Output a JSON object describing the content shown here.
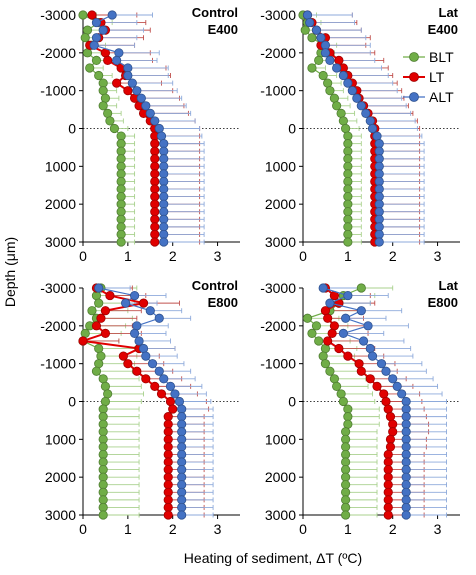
{
  "figure": {
    "ylabel": "Depth (μm)",
    "xlabel": "Heating of sediment, ΔT (ºC)"
  },
  "colors": {
    "BLT": "#70ad47",
    "BLT_edge": "#507e32",
    "LT": "#e00000",
    "LT_edge": "#a00000",
    "ALT": "#4472c4",
    "ALT_edge": "#2f528f",
    "err_green": "#a9d18e",
    "err_red": "#c0504d",
    "err_blue": "#8eaadb"
  },
  "legend": {
    "entries": [
      "BLT",
      "LT",
      "ALT"
    ]
  },
  "chart_data": [
    {
      "type": "line",
      "title_line1": "Control",
      "title_line2": "E400",
      "xlim": [
        0,
        3.5
      ],
      "ylim": [
        3000,
        -3000
      ],
      "xticks": [
        "0",
        "1",
        "2",
        "3"
      ],
      "yticks": [
        "-3000",
        "-2000",
        "-1000",
        "0",
        "1000",
        "2000",
        "3000"
      ],
      "depth": [
        -3000,
        -2800,
        -2600,
        -2400,
        -2200,
        -2000,
        -1800,
        -1600,
        -1400,
        -1200,
        -1000,
        -800,
        -600,
        -400,
        -200,
        0,
        200,
        400,
        600,
        800,
        1000,
        1200,
        1400,
        1600,
        1800,
        2000,
        2200,
        2400,
        2600,
        2800,
        3000
      ],
      "series": [
        {
          "name": "BLT",
          "values": [
            0.0,
            0.35,
            0.1,
            0.05,
            0.2,
            0.1,
            0.3,
            0.15,
            0.35,
            0.45,
            0.45,
            0.5,
            0.45,
            0.55,
            0.6,
            0.7,
            0.85,
            0.85,
            0.85,
            0.85,
            0.85,
            0.85,
            0.85,
            0.85,
            0.85,
            0.85,
            0.85,
            0.85,
            0.85,
            0.85,
            0.85
          ],
          "err": [
            0.3,
            0.3,
            0.3,
            0.3,
            0.3,
            0.3,
            0.3,
            0.3,
            0.3,
            0.3,
            0.3,
            0.3,
            0.3,
            0.3,
            0.3,
            0.3,
            0.3,
            0.3,
            0.3,
            0.3,
            0.3,
            0.3,
            0.3,
            0.3,
            0.3,
            0.3,
            0.3,
            0.3,
            0.3,
            0.3,
            0.3
          ]
        },
        {
          "name": "LT",
          "values": [
            0.2,
            0.4,
            0.5,
            0.35,
            0.15,
            0.5,
            0.55,
            0.85,
            0.95,
            0.75,
            1.0,
            1.15,
            1.25,
            1.35,
            1.5,
            1.6,
            1.6,
            1.6,
            1.6,
            1.6,
            1.6,
            1.6,
            1.6,
            1.6,
            1.6,
            1.6,
            1.6,
            1.6,
            1.6,
            1.6,
            1.6
          ],
          "err": [
            1.0,
            1.0,
            1.0,
            1.0,
            1.0,
            1.0,
            1.0,
            1.0,
            1.0,
            1.0,
            1.0,
            1.0,
            1.0,
            1.0,
            1.0,
            1.0,
            1.0,
            1.0,
            1.0,
            1.0,
            1.0,
            1.0,
            1.0,
            1.0,
            1.0,
            1.0,
            1.0,
            1.0,
            1.0,
            1.0,
            1.0
          ]
        },
        {
          "name": "ALT",
          "values": [
            0.65,
            0.3,
            0.45,
            0.3,
            0.25,
            0.8,
            0.75,
            1.0,
            1.0,
            1.1,
            1.2,
            1.3,
            1.4,
            1.5,
            1.6,
            1.7,
            1.75,
            1.8,
            1.8,
            1.8,
            1.8,
            1.8,
            1.8,
            1.8,
            1.8,
            1.8,
            1.8,
            1.8,
            1.8,
            1.8,
            1.8
          ],
          "err": [
            0.9,
            0.9,
            0.9,
            0.9,
            0.9,
            0.9,
            0.9,
            0.9,
            0.9,
            0.9,
            0.9,
            0.9,
            0.9,
            0.9,
            0.9,
            0.9,
            0.9,
            0.9,
            0.9,
            0.9,
            0.9,
            0.9,
            0.9,
            0.9,
            0.9,
            0.9,
            0.9,
            0.9,
            0.9,
            0.9,
            0.9
          ]
        }
      ]
    },
    {
      "type": "line",
      "title_line1": "Lat",
      "title_line2": "E400",
      "xlim": [
        0,
        3.5
      ],
      "ylim": [
        3000,
        -3000
      ],
      "xticks": [
        "0",
        "1",
        "2",
        "3"
      ],
      "yticks": [
        "-3000",
        "-2000",
        "-1000",
        "0",
        "1000",
        "2000",
        "3000"
      ],
      "depth": [
        -3000,
        -2800,
        -2600,
        -2400,
        -2200,
        -2000,
        -1800,
        -1600,
        -1400,
        -1200,
        -1000,
        -800,
        -600,
        -400,
        -200,
        0,
        200,
        400,
        600,
        800,
        1000,
        1200,
        1400,
        1600,
        1800,
        2000,
        2200,
        2400,
        2600,
        2800,
        3000
      ],
      "series": [
        {
          "name": "BLT",
          "values": [
            0.0,
            0.1,
            0.05,
            0.2,
            0.45,
            0.4,
            0.35,
            0.2,
            0.45,
            0.55,
            0.6,
            0.7,
            0.75,
            0.85,
            0.9,
            0.95,
            1.0,
            1.0,
            1.0,
            1.0,
            1.0,
            1.0,
            1.0,
            1.0,
            1.0,
            1.0,
            1.0,
            1.0,
            1.0,
            1.0,
            1.0
          ],
          "err": [
            0.3,
            0.3,
            0.3,
            0.3,
            0.3,
            0.3,
            0.3,
            0.3,
            0.3,
            0.3,
            0.3,
            0.3,
            0.3,
            0.3,
            0.3,
            0.3,
            0.3,
            0.3,
            0.3,
            0.3,
            0.3,
            0.3,
            0.3,
            0.3,
            0.3,
            0.3,
            0.3,
            0.3,
            0.3,
            0.3,
            0.3
          ]
        },
        {
          "name": "LT",
          "values": [
            0.1,
            0.2,
            0.3,
            0.5,
            0.4,
            0.6,
            0.8,
            0.9,
            1.0,
            1.1,
            1.2,
            1.25,
            1.35,
            1.45,
            1.55,
            1.6,
            1.6,
            1.6,
            1.6,
            1.6,
            1.6,
            1.6,
            1.6,
            1.6,
            1.6,
            1.6,
            1.6,
            1.6,
            1.6,
            1.6,
            1.6
          ],
          "err": [
            1.0,
            1.0,
            1.0,
            1.0,
            1.0,
            1.0,
            1.0,
            1.0,
            1.0,
            1.0,
            1.0,
            1.0,
            1.0,
            1.0,
            1.0,
            1.0,
            1.0,
            1.0,
            1.0,
            1.0,
            1.0,
            1.0,
            1.0,
            1.0,
            1.0,
            1.0,
            1.0,
            1.0,
            1.0,
            1.0,
            1.0
          ]
        },
        {
          "name": "ALT",
          "values": [
            0.1,
            0.15,
            0.3,
            0.4,
            0.5,
            0.5,
            0.6,
            0.75,
            0.9,
            1.0,
            1.1,
            1.2,
            1.3,
            1.4,
            1.5,
            1.55,
            1.65,
            1.7,
            1.7,
            1.7,
            1.7,
            1.7,
            1.7,
            1.7,
            1.7,
            1.7,
            1.7,
            1.7,
            1.7,
            1.7,
            1.7
          ],
          "err": [
            1.0,
            1.0,
            1.0,
            1.0,
            1.0,
            1.0,
            1.0,
            1.0,
            1.0,
            1.0,
            1.0,
            1.0,
            1.0,
            1.0,
            1.0,
            1.0,
            1.0,
            1.0,
            1.0,
            1.0,
            1.0,
            1.0,
            1.0,
            1.0,
            1.0,
            1.0,
            1.0,
            1.0,
            1.0,
            1.0,
            1.0
          ]
        }
      ]
    },
    {
      "type": "line",
      "title_line1": "Control",
      "title_line2": "E800",
      "xlim": [
        0,
        3.5
      ],
      "ylim": [
        3000,
        -3000
      ],
      "xticks": [
        "0",
        "1",
        "2",
        "3"
      ],
      "yticks": [
        "-3000",
        "-2000",
        "-1000",
        "0",
        "1000",
        "2000",
        "3000"
      ],
      "depth": [
        -3000,
        -2800,
        -2600,
        -2400,
        -2200,
        -2000,
        -1800,
        -1600,
        -1400,
        -1200,
        -1000,
        -800,
        -600,
        -400,
        -200,
        0,
        200,
        400,
        600,
        800,
        1000,
        1200,
        1400,
        1600,
        1800,
        2000,
        2200,
        2400,
        2600,
        2800,
        3000
      ],
      "series": [
        {
          "name": "BLT",
          "values": [
            0.4,
            0.3,
            0.35,
            0.2,
            0.3,
            0.15,
            0.05,
            0.0,
            0.35,
            0.4,
            0.35,
            0.3,
            0.45,
            0.5,
            0.55,
            0.5,
            0.45,
            0.45,
            0.45,
            0.45,
            0.45,
            0.45,
            0.45,
            0.45,
            0.45,
            0.45,
            0.45,
            0.45,
            0.45,
            0.45,
            0.45
          ],
          "err": [
            0.8,
            0.8,
            0.8,
            0.8,
            0.8,
            0.8,
            0.8,
            0.8,
            0.8,
            0.8,
            0.8,
            0.8,
            0.8,
            0.8,
            0.8,
            0.8,
            0.8,
            0.8,
            0.8,
            0.8,
            0.8,
            0.8,
            0.8,
            0.8,
            0.8,
            0.8,
            0.8,
            0.8,
            0.8,
            0.8,
            0.8
          ]
        },
        {
          "name": "LT",
          "values": [
            0.3,
            0.6,
            1.35,
            0.5,
            0.4,
            0.3,
            0.5,
            0.0,
            1.25,
            0.9,
            1.0,
            1.2,
            1.4,
            1.6,
            1.75,
            1.95,
            2.0,
            1.9,
            1.9,
            1.9,
            1.9,
            1.9,
            1.9,
            1.9,
            1.9,
            1.9,
            1.9,
            1.9,
            1.9,
            1.9,
            1.9
          ],
          "err": [
            0.8,
            0.8,
            0.8,
            0.8,
            0.8,
            0.8,
            0.8,
            0.8,
            0.8,
            0.8,
            0.8,
            0.8,
            0.8,
            0.8,
            0.8,
            0.8,
            0.8,
            0.8,
            0.8,
            0.8,
            0.8,
            0.8,
            0.8,
            0.8,
            0.8,
            0.8,
            0.8,
            0.8,
            0.8,
            0.8,
            0.8
          ]
        },
        {
          "name": "ALT",
          "values": [
            0.35,
            1.15,
            0.95,
            1.5,
            1.7,
            1.2,
            1.15,
            1.25,
            1.35,
            1.4,
            1.55,
            1.7,
            1.8,
            1.95,
            2.05,
            2.15,
            2.2,
            2.2,
            2.2,
            2.2,
            2.2,
            2.2,
            2.2,
            2.2,
            2.2,
            2.2,
            2.2,
            2.2,
            2.2,
            2.2,
            2.2
          ],
          "err": [
            0.7,
            0.7,
            0.7,
            0.7,
            0.7,
            0.7,
            0.7,
            0.7,
            0.7,
            0.7,
            0.7,
            0.7,
            0.7,
            0.7,
            0.7,
            0.7,
            0.7,
            0.7,
            0.7,
            0.7,
            0.7,
            0.7,
            0.7,
            0.7,
            0.7,
            0.7,
            0.7,
            0.7,
            0.7,
            0.7,
            0.7
          ]
        }
      ]
    },
    {
      "type": "line",
      "title_line1": "Lat",
      "title_line2": "E800",
      "xlim": [
        0,
        3.5
      ],
      "ylim": [
        3000,
        -3000
      ],
      "xticks": [
        "0",
        "1",
        "2",
        "3"
      ],
      "yticks": [
        "-3000",
        "-2000",
        "-1000",
        "0",
        "1000",
        "2000",
        "3000"
      ],
      "depth": [
        -3000,
        -2800,
        -2600,
        -2400,
        -2200,
        -2000,
        -1800,
        -1600,
        -1400,
        -1200,
        -1000,
        -800,
        -600,
        -400,
        -200,
        0,
        200,
        400,
        600,
        800,
        1000,
        1200,
        1400,
        1600,
        1800,
        2000,
        2200,
        2400,
        2600,
        2800,
        3000
      ],
      "series": [
        {
          "name": "BLT",
          "values": [
            1.3,
            0.9,
            0.8,
            0.6,
            0.1,
            0.3,
            0.2,
            0.35,
            0.5,
            0.45,
            0.5,
            0.6,
            0.7,
            0.75,
            0.85,
            0.9,
            1.0,
            1.0,
            1.0,
            0.95,
            0.95,
            0.95,
            0.95,
            0.95,
            0.95,
            0.95,
            0.95,
            0.95,
            0.95,
            0.95,
            0.95
          ],
          "err": [
            0.7,
            0.7,
            0.7,
            0.7,
            0.7,
            0.7,
            0.7,
            0.7,
            0.7,
            0.7,
            0.7,
            0.7,
            0.7,
            0.7,
            0.7,
            0.7,
            0.7,
            0.7,
            0.7,
            0.7,
            0.7,
            0.7,
            0.7,
            0.7,
            0.7,
            0.7,
            0.7,
            0.7,
            0.7,
            0.7,
            0.7
          ]
        },
        {
          "name": "LT",
          "values": [
            0.5,
            0.7,
            0.8,
            0.5,
            0.55,
            0.7,
            0.65,
            0.55,
            0.8,
            1.0,
            1.25,
            1.3,
            1.5,
            1.65,
            1.8,
            1.85,
            1.9,
            1.95,
            2.0,
            2.0,
            1.95,
            1.95,
            1.9,
            1.9,
            1.9,
            1.9,
            1.9,
            1.9,
            1.9,
            1.9,
            1.9
          ],
          "err": [
            0.8,
            0.8,
            0.8,
            0.8,
            0.8,
            0.8,
            0.8,
            0.8,
            0.8,
            0.8,
            0.8,
            0.8,
            0.8,
            0.8,
            0.8,
            0.8,
            0.8,
            0.8,
            0.8,
            0.8,
            0.8,
            0.8,
            0.8,
            0.8,
            0.8,
            0.8,
            0.8,
            0.8,
            0.8,
            0.8,
            0.8
          ]
        },
        {
          "name": "ALT",
          "values": [
            0.45,
            1.0,
            0.6,
            1.3,
            0.95,
            1.45,
            0.9,
            1.35,
            1.5,
            1.55,
            1.75,
            1.85,
            2.0,
            2.1,
            2.2,
            2.3,
            2.3,
            2.3,
            2.3,
            2.3,
            2.3,
            2.3,
            2.3,
            2.3,
            2.3,
            2.3,
            2.3,
            2.3,
            2.3,
            2.3,
            2.3
          ],
          "err": [
            0.9,
            0.9,
            0.9,
            0.9,
            0.9,
            0.9,
            0.9,
            0.9,
            0.9,
            0.9,
            0.9,
            0.9,
            0.9,
            0.9,
            0.9,
            0.9,
            0.9,
            0.9,
            0.9,
            0.9,
            0.9,
            0.9,
            0.9,
            0.9,
            0.9,
            0.9,
            0.9,
            0.9,
            0.9,
            0.9,
            0.9
          ]
        }
      ]
    }
  ]
}
